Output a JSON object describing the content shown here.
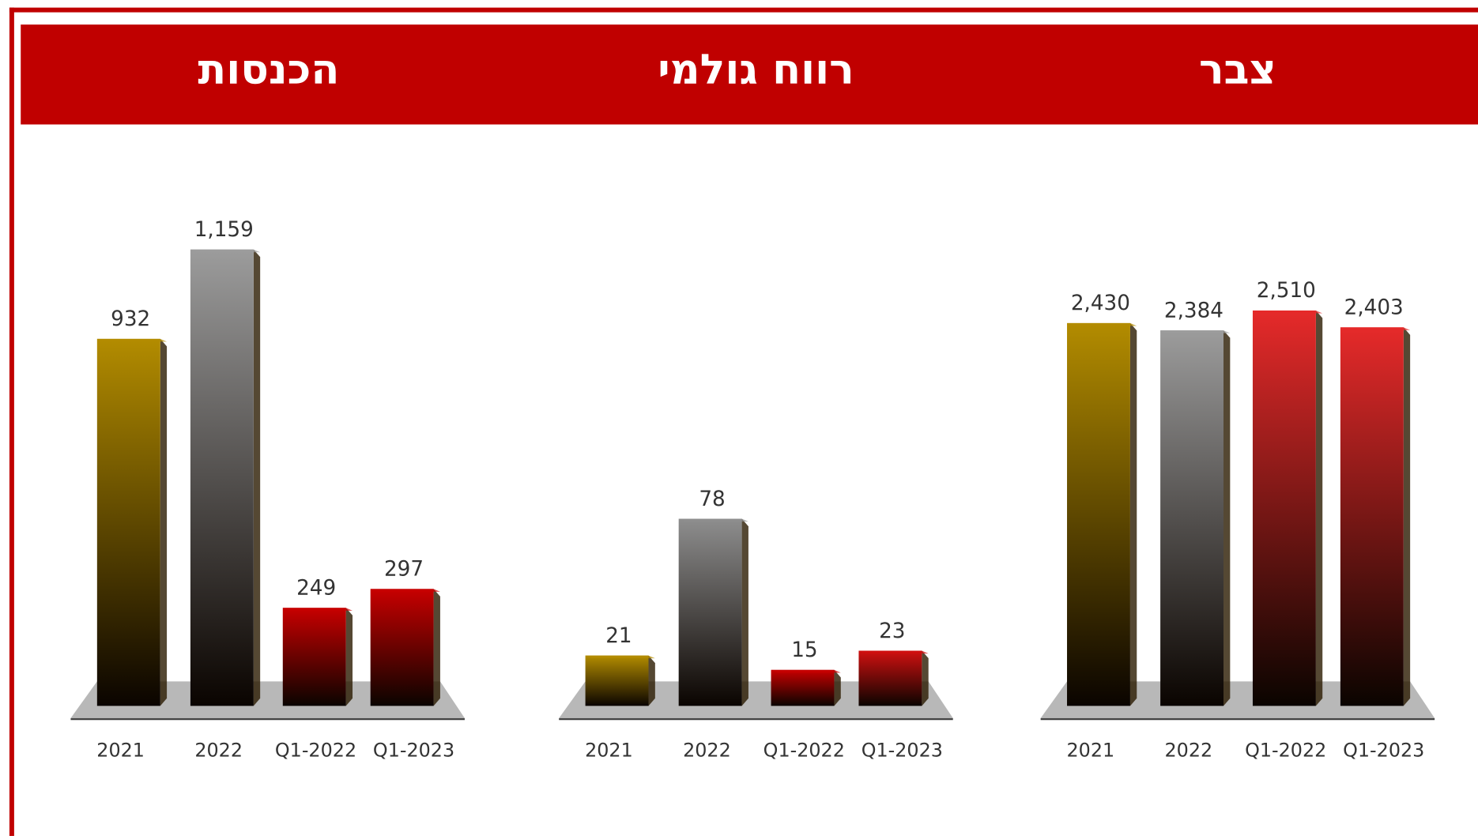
{
  "chart_data": [
    {
      "type": "bar",
      "title": "הכנסות",
      "categories": [
        "2021",
        "2022",
        "Q1-2022",
        "Q1-2023"
      ],
      "values": [
        932,
        1159,
        249,
        297
      ],
      "value_labels": [
        "932",
        "1,159",
        "249",
        "297"
      ],
      "colors": [
        "#b38c00",
        "#9c9c9c",
        "#c80000",
        "#c80000"
      ],
      "ylim": [
        0,
        1340
      ]
    },
    {
      "type": "bar",
      "title": "רווח גולמי",
      "categories": [
        "2021",
        "2022",
        "Q1-2022",
        "Q1-2023"
      ],
      "values": [
        21,
        78,
        15,
        23
      ],
      "value_labels": [
        "21",
        "78",
        "15",
        "23"
      ],
      "colors": [
        "#b38c00",
        "#8e8e8e",
        "#c80000",
        "#d01010"
      ],
      "ylim": [
        0,
        220
      ]
    },
    {
      "type": "bar",
      "title": "צבר",
      "categories": [
        "2021",
        "2022",
        "Q1-2022",
        "Q1-2023"
      ],
      "values": [
        2430,
        2384,
        2510,
        2403
      ],
      "value_labels": [
        "2,430",
        "2,384",
        "2,510",
        "2,403"
      ],
      "colors": [
        "#b38c00",
        "#9c9c9c",
        "#e62a2a",
        "#e62a2a"
      ],
      "ylim": [
        0,
        3350
      ]
    }
  ]
}
